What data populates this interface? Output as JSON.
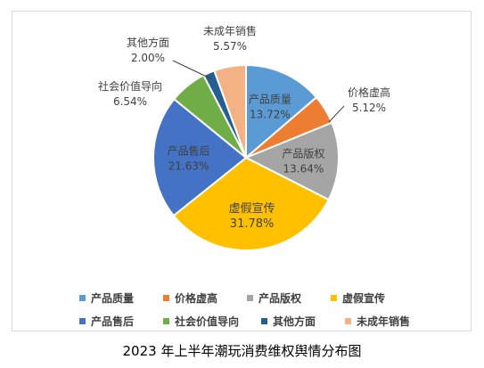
{
  "caption": "2023 年上半年潮玩消费维权舆情分布图",
  "chart_data": {
    "type": "pie",
    "title": "",
    "slices": [
      {
        "name": "产品质量",
        "value": 13.72,
        "label": "13.72%",
        "color": "#5b9bd5"
      },
      {
        "name": "价格虚高",
        "value": 5.12,
        "label": "5.12%",
        "color": "#ed7d31"
      },
      {
        "name": "产品版权",
        "value": 13.64,
        "label": "13.64%",
        "color": "#a5a5a5"
      },
      {
        "name": "虚假宣传",
        "value": 31.78,
        "label": "31.78%",
        "color": "#ffc000"
      },
      {
        "name": "产品售后",
        "value": 21.63,
        "label": "21.63%",
        "color": "#4472c4"
      },
      {
        "name": "社会价值导向",
        "value": 6.54,
        "label": "6.54%",
        "color": "#70ad47"
      },
      {
        "name": "其他方面",
        "value": 2.0,
        "label": "2.00%",
        "color": "#255e91"
      },
      {
        "name": "未成年销售",
        "value": 5.57,
        "label": "5.57%",
        "color": "#f4b183"
      }
    ],
    "legend_position": "bottom"
  }
}
